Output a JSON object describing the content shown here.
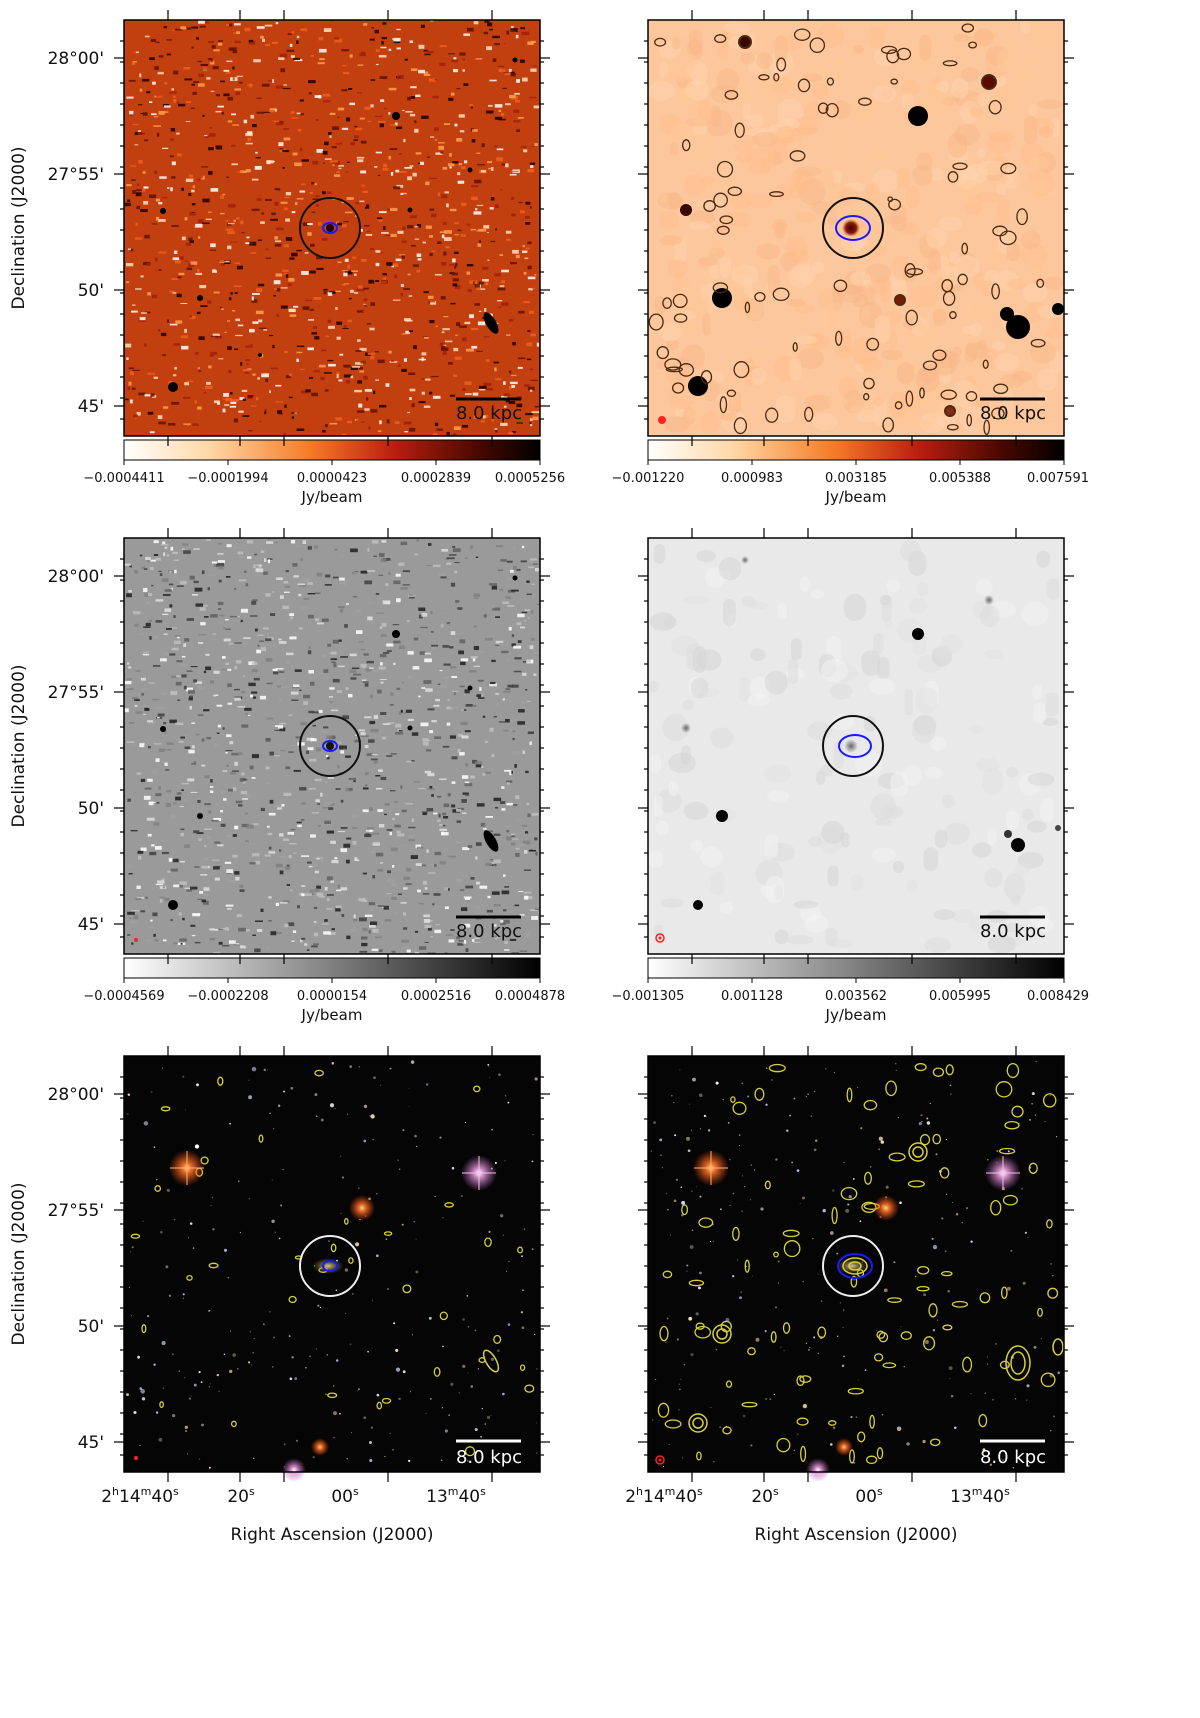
{
  "figure": {
    "dec_axis_label": "Declination (J2000)",
    "ra_axis_label": "Right Ascension (J2000)",
    "dec_ticks": [
      "28°00'",
      "27°55'",
      "50'",
      "45'"
    ],
    "ra_ticks": [
      {
        "h": "2",
        "m": "14",
        "s": "40"
      },
      {
        "s": "20"
      },
      {
        "s": "00"
      },
      {
        "m": "13",
        "s": "40"
      }
    ],
    "scalebar_label": "8.0 kpc",
    "colorbar_unit": "Jy/beam",
    "colorbars": {
      "top_left": [
        "−0.0004411",
        "−0.0001994",
        "0.0000423",
        "0.0002839",
        "0.0005256"
      ],
      "top_right": [
        "−0.001220",
        "0.000983",
        "0.003185",
        "0.005388",
        "0.007591"
      ],
      "mid_left": [
        "−0.0004569",
        "−0.0002208",
        "0.0000154",
        "0.0002516",
        "0.0004878"
      ],
      "mid_right": [
        "−0.001305",
        "0.001128",
        "0.003562",
        "0.005995",
        "0.008429"
      ]
    },
    "colors": {
      "ring_dark": "#111111",
      "ring_light": "#eeeeee",
      "ellipse": "#1a1aff",
      "contour_optical": "#d8d03a",
      "contour_radio": "#4a2a10",
      "beam": "#ff2020",
      "heat_low": "#ffffff",
      "heat_mid": "#e8481a",
      "heat_high": "#000000"
    }
  }
}
